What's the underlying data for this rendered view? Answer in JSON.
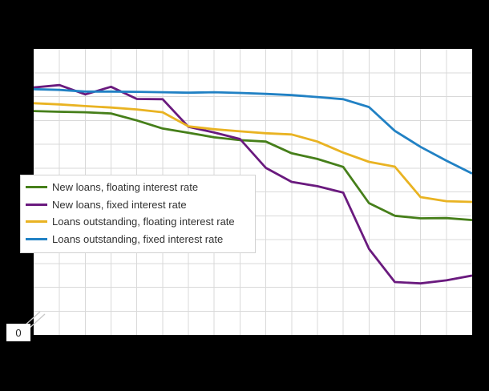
{
  "page": {
    "background": "#000000",
    "plot_background": "#ffffff",
    "gridline_color": "#d9d9d9"
  },
  "chart_data": {
    "type": "line",
    "title": "",
    "xlabel": "",
    "ylabel": "",
    "grid": true,
    "legend_position": "lower-left",
    "x": [
      1,
      2,
      3,
      4,
      5,
      6,
      7,
      8,
      9,
      10,
      11,
      12,
      13,
      14,
      15,
      16,
      17,
      18
    ],
    "x_axis": {
      "visible_tick_labels": [],
      "intervals": 17
    },
    "y_axis": {
      "visible_tick_label": "0",
      "axis_break": true,
      "rows": 12,
      "ylim_rows": [
        0,
        12
      ],
      "unit_note": "no numeric tick labels shown; values estimated in gridline units above the plot bottom, axis broken down to 0"
    },
    "series": [
      {
        "name": "New loans, floating interest rate",
        "color": "#467f1a",
        "values": [
          9.39,
          9.36,
          9.34,
          9.29,
          9.0,
          8.66,
          8.48,
          8.29,
          8.17,
          8.11,
          7.62,
          7.38,
          7.05,
          5.53,
          5.0,
          4.89,
          4.9,
          4.82
        ]
      },
      {
        "name": "New loans, fixed interest rate",
        "color": "#6a1a7e",
        "values": [
          10.38,
          10.48,
          10.09,
          10.41,
          9.9,
          9.89,
          8.73,
          8.49,
          8.22,
          7.01,
          6.42,
          6.24,
          5.97,
          3.61,
          2.22,
          2.16,
          2.29,
          2.49
        ]
      },
      {
        "name": "Loans outstanding, floating interest rate",
        "color": "#e9b322",
        "values": [
          9.72,
          9.67,
          9.6,
          9.54,
          9.46,
          9.34,
          8.75,
          8.63,
          8.54,
          8.46,
          8.41,
          8.11,
          7.65,
          7.26,
          7.06,
          5.78,
          5.61,
          5.58
        ]
      },
      {
        "name": "Loans outstanding, fixed interest rate",
        "color": "#2181c4",
        "values": [
          10.31,
          10.28,
          10.21,
          10.21,
          10.2,
          10.18,
          10.16,
          10.18,
          10.15,
          10.11,
          10.06,
          9.98,
          9.89,
          9.56,
          8.56,
          7.89,
          7.31,
          6.77
        ]
      }
    ]
  }
}
